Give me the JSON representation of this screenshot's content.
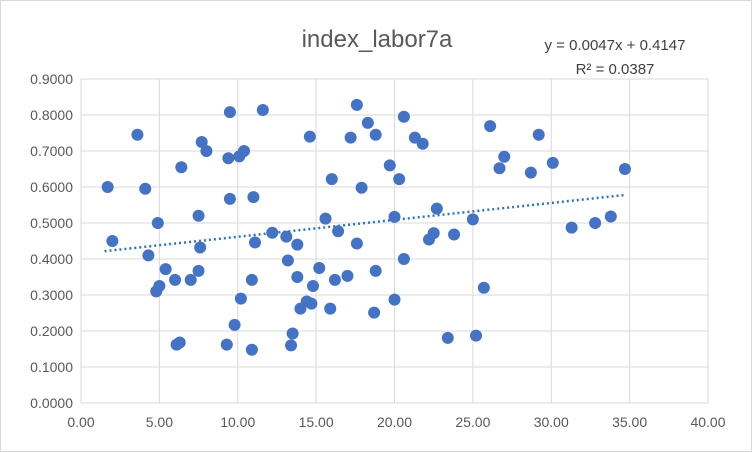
{
  "chart_data": {
    "type": "scatter",
    "title": "index_labor7a",
    "xlabel": "",
    "ylabel": "",
    "xlim": [
      0,
      40
    ],
    "ylim": [
      0,
      0.9
    ],
    "x_ticks": [
      "0.00",
      "5.00",
      "10.00",
      "15.00",
      "20.00",
      "25.00",
      "30.00",
      "35.00",
      "40.00"
    ],
    "y_ticks": [
      "0.0000",
      "0.1000",
      "0.2000",
      "0.3000",
      "0.4000",
      "0.5000",
      "0.6000",
      "0.7000",
      "0.8000",
      "0.9000"
    ],
    "grid": true,
    "colors": {
      "points": "#4472c4",
      "trendline": "#2e75b6",
      "grid": "#d9d9d9",
      "text": "#595959"
    },
    "trendline": {
      "type": "linear",
      "slope": 0.0047,
      "intercept": 0.4147,
      "x_range": [
        1.5,
        34.8
      ],
      "equation": "y = 0.0047x + 0.4147",
      "r_squared": "R² = 0.0387"
    },
    "points": [
      {
        "x": 1.7,
        "y": 0.6
      },
      {
        "x": 2.0,
        "y": 0.45
      },
      {
        "x": 3.6,
        "y": 0.745
      },
      {
        "x": 4.1,
        "y": 0.595
      },
      {
        "x": 4.3,
        "y": 0.41
      },
      {
        "x": 4.8,
        "y": 0.31
      },
      {
        "x": 4.9,
        "y": 0.5
      },
      {
        "x": 5.0,
        "y": 0.325
      },
      {
        "x": 5.4,
        "y": 0.372
      },
      {
        "x": 6.0,
        "y": 0.342
      },
      {
        "x": 6.1,
        "y": 0.162
      },
      {
        "x": 6.3,
        "y": 0.168
      },
      {
        "x": 6.4,
        "y": 0.655
      },
      {
        "x": 7.0,
        "y": 0.342
      },
      {
        "x": 7.5,
        "y": 0.52
      },
      {
        "x": 7.5,
        "y": 0.367
      },
      {
        "x": 7.6,
        "y": 0.432
      },
      {
        "x": 7.7,
        "y": 0.725
      },
      {
        "x": 8.0,
        "y": 0.7
      },
      {
        "x": 9.4,
        "y": 0.68
      },
      {
        "x": 9.5,
        "y": 0.808
      },
      {
        "x": 9.5,
        "y": 0.567
      },
      {
        "x": 9.3,
        "y": 0.162
      },
      {
        "x": 9.8,
        "y": 0.217
      },
      {
        "x": 10.1,
        "y": 0.685
      },
      {
        "x": 10.2,
        "y": 0.29
      },
      {
        "x": 10.4,
        "y": 0.7
      },
      {
        "x": 10.9,
        "y": 0.342
      },
      {
        "x": 10.9,
        "y": 0.148
      },
      {
        "x": 11.0,
        "y": 0.572
      },
      {
        "x": 11.1,
        "y": 0.446
      },
      {
        "x": 11.6,
        "y": 0.814
      },
      {
        "x": 12.2,
        "y": 0.473
      },
      {
        "x": 13.1,
        "y": 0.462
      },
      {
        "x": 13.2,
        "y": 0.396
      },
      {
        "x": 13.4,
        "y": 0.16
      },
      {
        "x": 13.5,
        "y": 0.193
      },
      {
        "x": 13.8,
        "y": 0.44
      },
      {
        "x": 13.8,
        "y": 0.35
      },
      {
        "x": 14.0,
        "y": 0.262
      },
      {
        "x": 14.4,
        "y": 0.282
      },
      {
        "x": 14.6,
        "y": 0.74
      },
      {
        "x": 14.7,
        "y": 0.276
      },
      {
        "x": 14.8,
        "y": 0.325
      },
      {
        "x": 15.2,
        "y": 0.375
      },
      {
        "x": 15.6,
        "y": 0.512
      },
      {
        "x": 15.9,
        "y": 0.262
      },
      {
        "x": 16.0,
        "y": 0.622
      },
      {
        "x": 16.2,
        "y": 0.342
      },
      {
        "x": 16.4,
        "y": 0.477
      },
      {
        "x": 17.0,
        "y": 0.353
      },
      {
        "x": 17.2,
        "y": 0.737
      },
      {
        "x": 17.6,
        "y": 0.828
      },
      {
        "x": 17.6,
        "y": 0.443
      },
      {
        "x": 17.9,
        "y": 0.598
      },
      {
        "x": 18.3,
        "y": 0.778
      },
      {
        "x": 18.7,
        "y": 0.251
      },
      {
        "x": 18.8,
        "y": 0.367
      },
      {
        "x": 18.8,
        "y": 0.745
      },
      {
        "x": 19.7,
        "y": 0.66
      },
      {
        "x": 20.0,
        "y": 0.517
      },
      {
        "x": 20.0,
        "y": 0.287
      },
      {
        "x": 20.3,
        "y": 0.622
      },
      {
        "x": 20.6,
        "y": 0.795
      },
      {
        "x": 20.6,
        "y": 0.4
      },
      {
        "x": 21.3,
        "y": 0.737
      },
      {
        "x": 21.8,
        "y": 0.72
      },
      {
        "x": 22.2,
        "y": 0.454
      },
      {
        "x": 22.5,
        "y": 0.472
      },
      {
        "x": 22.7,
        "y": 0.54
      },
      {
        "x": 23.4,
        "y": 0.181
      },
      {
        "x": 23.8,
        "y": 0.468
      },
      {
        "x": 25.0,
        "y": 0.51
      },
      {
        "x": 25.2,
        "y": 0.187
      },
      {
        "x": 25.7,
        "y": 0.32
      },
      {
        "x": 26.1,
        "y": 0.769
      },
      {
        "x": 26.7,
        "y": 0.652
      },
      {
        "x": 27.0,
        "y": 0.684
      },
      {
        "x": 28.7,
        "y": 0.64
      },
      {
        "x": 29.2,
        "y": 0.745
      },
      {
        "x": 30.1,
        "y": 0.667
      },
      {
        "x": 31.3,
        "y": 0.487
      },
      {
        "x": 32.8,
        "y": 0.5
      },
      {
        "x": 33.8,
        "y": 0.518
      },
      {
        "x": 34.7,
        "y": 0.65
      }
    ]
  }
}
